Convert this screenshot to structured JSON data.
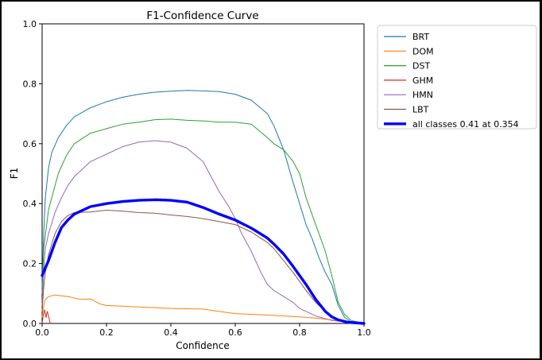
{
  "chart_data": {
    "type": "line",
    "title": "F1-Confidence Curve",
    "xlabel": "Confidence",
    "ylabel": "F1",
    "xlim": [
      0.0,
      1.0
    ],
    "ylim": [
      0.0,
      1.0
    ],
    "xticks": [
      "0.0",
      "0.2",
      "0.4",
      "0.6",
      "0.8",
      "1.0"
    ],
    "yticks": [
      "0.0",
      "0.2",
      "0.4",
      "0.6",
      "0.8",
      "1.0"
    ],
    "legend_position": "top-right outside",
    "grid": false,
    "series": [
      {
        "name": "BRT",
        "color": "#1f77b4",
        "points": [
          [
            0,
            0.12
          ],
          [
            0.005,
            0.3
          ],
          [
            0.01,
            0.42
          ],
          [
            0.02,
            0.52
          ],
          [
            0.03,
            0.57
          ],
          [
            0.05,
            0.62
          ],
          [
            0.075,
            0.66
          ],
          [
            0.1,
            0.69
          ],
          [
            0.15,
            0.72
          ],
          [
            0.2,
            0.74
          ],
          [
            0.25,
            0.755
          ],
          [
            0.3,
            0.765
          ],
          [
            0.35,
            0.772
          ],
          [
            0.4,
            0.775
          ],
          [
            0.45,
            0.778
          ],
          [
            0.5,
            0.776
          ],
          [
            0.55,
            0.774
          ],
          [
            0.6,
            0.765
          ],
          [
            0.65,
            0.745
          ],
          [
            0.7,
            0.7
          ],
          [
            0.72,
            0.66
          ],
          [
            0.75,
            0.58
          ],
          [
            0.78,
            0.47
          ],
          [
            0.8,
            0.4
          ],
          [
            0.82,
            0.33
          ],
          [
            0.84,
            0.28
          ],
          [
            0.86,
            0.22
          ],
          [
            0.88,
            0.17
          ],
          [
            0.9,
            0.13
          ],
          [
            0.92,
            0.06
          ],
          [
            0.94,
            0.02
          ],
          [
            0.96,
            0.005
          ],
          [
            1.0,
            0.0
          ]
        ]
      },
      {
        "name": "DOM",
        "color": "#ff7f0e",
        "points": [
          [
            0,
            0.02
          ],
          [
            0.005,
            0.06
          ],
          [
            0.01,
            0.08
          ],
          [
            0.02,
            0.09
          ],
          [
            0.04,
            0.095
          ],
          [
            0.08,
            0.09
          ],
          [
            0.12,
            0.08
          ],
          [
            0.15,
            0.082
          ],
          [
            0.18,
            0.065
          ],
          [
            0.2,
            0.06
          ],
          [
            0.3,
            0.055
          ],
          [
            0.4,
            0.05
          ],
          [
            0.5,
            0.048
          ],
          [
            0.55,
            0.04
          ],
          [
            0.6,
            0.033
          ],
          [
            0.7,
            0.028
          ],
          [
            0.8,
            0.022
          ],
          [
            0.85,
            0.018
          ],
          [
            0.9,
            0.012
          ],
          [
            0.95,
            0.005
          ],
          [
            1.0,
            0.0
          ]
        ]
      },
      {
        "name": "DST",
        "color": "#2ca02c",
        "points": [
          [
            0,
            0.1
          ],
          [
            0.005,
            0.25
          ],
          [
            0.02,
            0.38
          ],
          [
            0.03,
            0.42
          ],
          [
            0.05,
            0.5
          ],
          [
            0.075,
            0.56
          ],
          [
            0.1,
            0.6
          ],
          [
            0.15,
            0.635
          ],
          [
            0.2,
            0.65
          ],
          [
            0.25,
            0.665
          ],
          [
            0.3,
            0.672
          ],
          [
            0.35,
            0.68
          ],
          [
            0.4,
            0.682
          ],
          [
            0.45,
            0.678
          ],
          [
            0.5,
            0.676
          ],
          [
            0.55,
            0.672
          ],
          [
            0.6,
            0.672
          ],
          [
            0.65,
            0.665
          ],
          [
            0.7,
            0.62
          ],
          [
            0.72,
            0.6
          ],
          [
            0.75,
            0.58
          ],
          [
            0.78,
            0.54
          ],
          [
            0.8,
            0.5
          ],
          [
            0.82,
            0.42
          ],
          [
            0.84,
            0.36
          ],
          [
            0.86,
            0.3
          ],
          [
            0.88,
            0.24
          ],
          [
            0.9,
            0.16
          ],
          [
            0.92,
            0.07
          ],
          [
            0.94,
            0.03
          ],
          [
            0.96,
            0.01
          ],
          [
            1.0,
            0.0
          ]
        ]
      },
      {
        "name": "GHM",
        "color": "#d62728",
        "points": [
          [
            0,
            0.0
          ],
          [
            0.004,
            0.03
          ],
          [
            0.008,
            0.045
          ],
          [
            0.012,
            0.02
          ],
          [
            0.016,
            0.04
          ],
          [
            0.02,
            0.025
          ],
          [
            0.025,
            0.0
          ]
        ]
      },
      {
        "name": "HMN",
        "color": "#9467bd",
        "points": [
          [
            0,
            0.06
          ],
          [
            0.005,
            0.18
          ],
          [
            0.01,
            0.25
          ],
          [
            0.02,
            0.3
          ],
          [
            0.04,
            0.37
          ],
          [
            0.06,
            0.42
          ],
          [
            0.08,
            0.46
          ],
          [
            0.1,
            0.49
          ],
          [
            0.15,
            0.54
          ],
          [
            0.2,
            0.565
          ],
          [
            0.25,
            0.59
          ],
          [
            0.3,
            0.605
          ],
          [
            0.35,
            0.61
          ],
          [
            0.4,
            0.605
          ],
          [
            0.45,
            0.585
          ],
          [
            0.5,
            0.54
          ],
          [
            0.52,
            0.5
          ],
          [
            0.55,
            0.44
          ],
          [
            0.58,
            0.39
          ],
          [
            0.6,
            0.35
          ],
          [
            0.62,
            0.3
          ],
          [
            0.65,
            0.24
          ],
          [
            0.68,
            0.17
          ],
          [
            0.7,
            0.13
          ],
          [
            0.72,
            0.11
          ],
          [
            0.75,
            0.09
          ],
          [
            0.78,
            0.07
          ],
          [
            0.8,
            0.05
          ],
          [
            0.85,
            0.025
          ],
          [
            0.9,
            0.01
          ],
          [
            1.0,
            0.0
          ]
        ]
      },
      {
        "name": "LBT",
        "color": "#8c564b",
        "points": [
          [
            0,
            0.04
          ],
          [
            0.005,
            0.12
          ],
          [
            0.01,
            0.17
          ],
          [
            0.02,
            0.23
          ],
          [
            0.04,
            0.3
          ],
          [
            0.06,
            0.34
          ],
          [
            0.08,
            0.36
          ],
          [
            0.1,
            0.37
          ],
          [
            0.15,
            0.372
          ],
          [
            0.2,
            0.378
          ],
          [
            0.25,
            0.375
          ],
          [
            0.3,
            0.37
          ],
          [
            0.35,
            0.368
          ],
          [
            0.4,
            0.362
          ],
          [
            0.45,
            0.357
          ],
          [
            0.5,
            0.35
          ],
          [
            0.55,
            0.34
          ],
          [
            0.6,
            0.33
          ],
          [
            0.65,
            0.305
          ],
          [
            0.7,
            0.27
          ],
          [
            0.72,
            0.25
          ],
          [
            0.75,
            0.21
          ],
          [
            0.78,
            0.17
          ],
          [
            0.8,
            0.14
          ],
          [
            0.82,
            0.11
          ],
          [
            0.85,
            0.07
          ],
          [
            0.88,
            0.04
          ],
          [
            0.9,
            0.02
          ],
          [
            0.95,
            0.005
          ],
          [
            1.0,
            0.0
          ]
        ]
      },
      {
        "name": "all classes 0.41 at 0.354",
        "color": "#0000ff",
        "bold": true,
        "points": [
          [
            0,
            0.16
          ],
          [
            0.01,
            0.185
          ],
          [
            0.02,
            0.21
          ],
          [
            0.04,
            0.27
          ],
          [
            0.06,
            0.32
          ],
          [
            0.08,
            0.345
          ],
          [
            0.1,
            0.365
          ],
          [
            0.15,
            0.39
          ],
          [
            0.2,
            0.4
          ],
          [
            0.25,
            0.407
          ],
          [
            0.3,
            0.411
          ],
          [
            0.354,
            0.413
          ],
          [
            0.4,
            0.411
          ],
          [
            0.45,
            0.405
          ],
          [
            0.5,
            0.387
          ],
          [
            0.55,
            0.365
          ],
          [
            0.6,
            0.345
          ],
          [
            0.65,
            0.318
          ],
          [
            0.7,
            0.285
          ],
          [
            0.72,
            0.265
          ],
          [
            0.75,
            0.232
          ],
          [
            0.78,
            0.19
          ],
          [
            0.8,
            0.16
          ],
          [
            0.82,
            0.13
          ],
          [
            0.85,
            0.08
          ],
          [
            0.88,
            0.04
          ],
          [
            0.9,
            0.022
          ],
          [
            0.92,
            0.012
          ],
          [
            0.95,
            0.004
          ],
          [
            1.0,
            0.0
          ]
        ]
      }
    ]
  }
}
